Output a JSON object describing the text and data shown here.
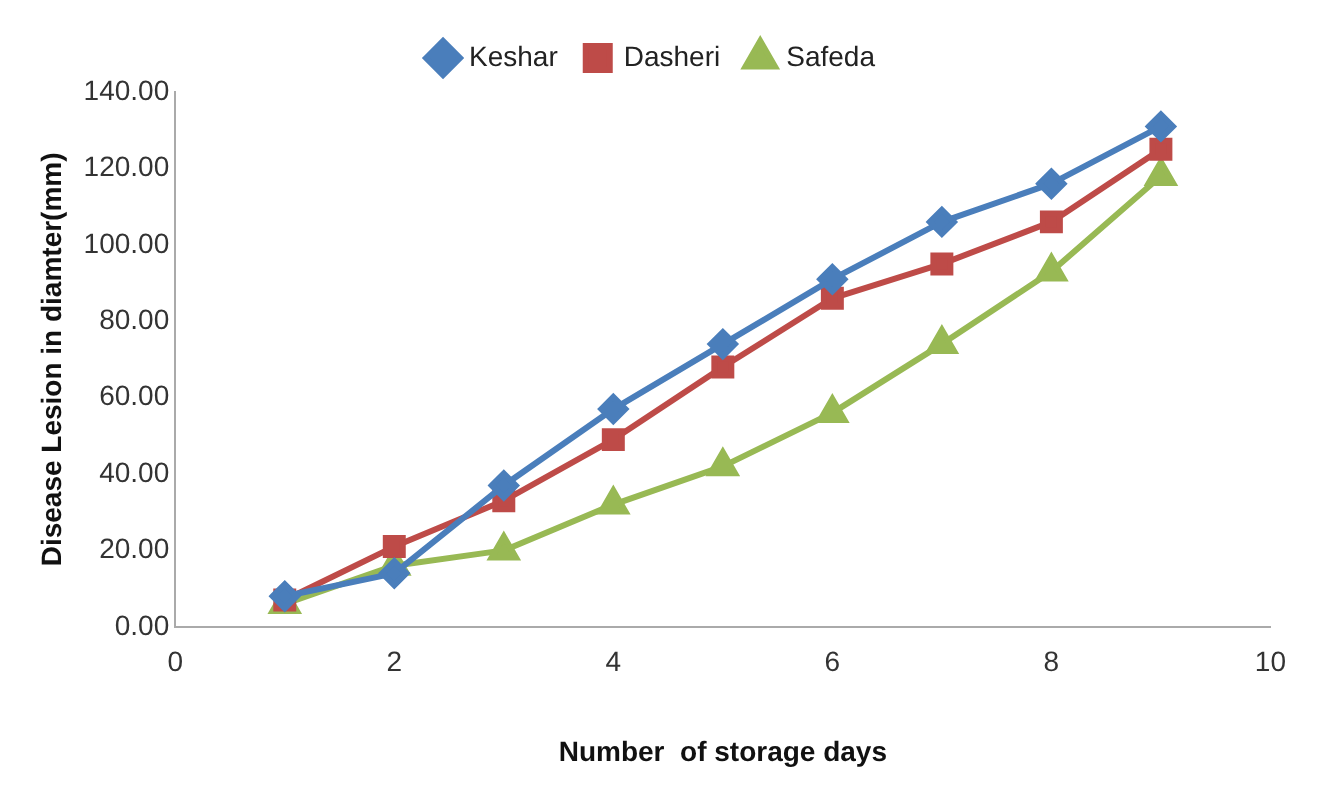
{
  "chart_data": {
    "type": "line",
    "xlabel": "Number  of storage days",
    "ylabel": "Disease Lesion in diamter(mm)",
    "x": [
      1,
      2,
      3,
      4,
      5,
      6,
      7,
      8,
      9
    ],
    "series": [
      {
        "name": "Keshar",
        "color": "#4a7ebb",
        "marker": "diamond",
        "values": [
          8,
          14,
          37,
          57,
          74,
          91,
          106,
          116,
          131
        ]
      },
      {
        "name": "Dasheri",
        "color": "#be4b48",
        "marker": "square",
        "values": [
          7,
          21,
          33,
          49,
          68,
          86,
          95,
          106,
          125
        ]
      },
      {
        "name": "Safeda",
        "color": "#98b954",
        "marker": "triangle",
        "values": [
          6,
          16,
          20,
          32,
          42,
          56,
          74,
          93,
          118
        ]
      }
    ],
    "xlim": [
      0,
      10
    ],
    "xticks": [
      0,
      2,
      4,
      6,
      8,
      10
    ],
    "ylim": [
      0,
      140
    ],
    "yticks": [
      {
        "value": 0,
        "label": "0.00"
      },
      {
        "value": 20,
        "label": "20.00"
      },
      {
        "value": 40,
        "label": "40.00"
      },
      {
        "value": 60,
        "label": "60.00"
      },
      {
        "value": 80,
        "label": "80.00"
      },
      {
        "value": 100,
        "label": "100.00"
      },
      {
        "value": 120,
        "label": "120.00"
      },
      {
        "value": 140,
        "label": "140.00"
      }
    ],
    "grid": false,
    "legend": "top",
    "line_style": "solid"
  }
}
